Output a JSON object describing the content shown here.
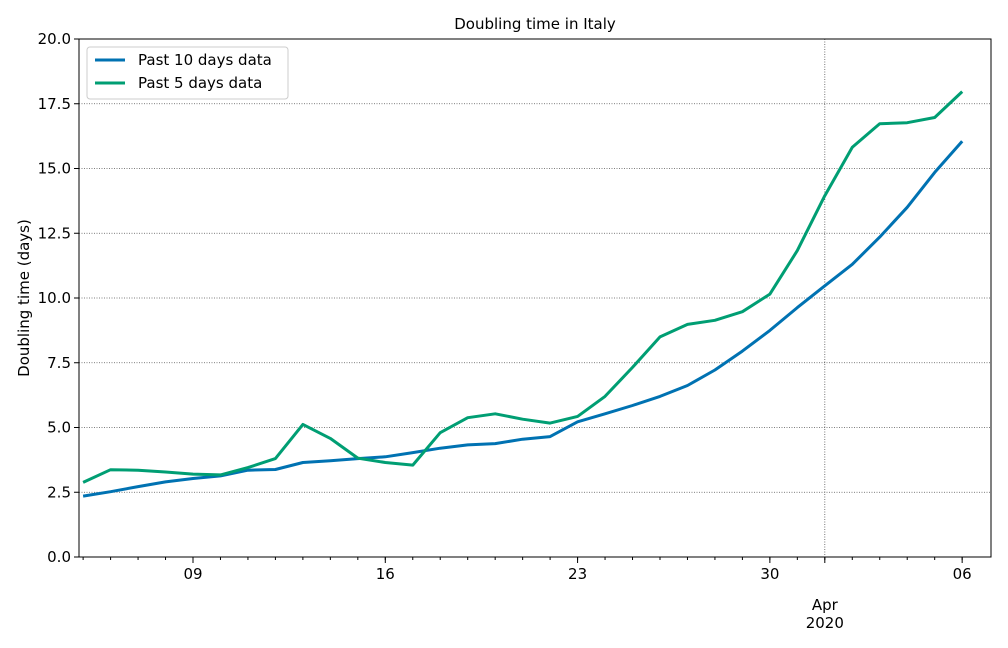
{
  "chart_data": {
    "type": "line",
    "title": "Doubling time in Italy",
    "xlabel": "",
    "ylabel": "Doubling time (days)",
    "ylim": [
      0,
      20
    ],
    "yticks": [
      "0.0",
      "2.5",
      "5.0",
      "7.5",
      "10.0",
      "12.5",
      "15.0",
      "17.5",
      "20.0"
    ],
    "x_range": [
      "2020-03-05",
      "2020-04-06"
    ],
    "x_tick_labels": [
      {
        "date": "2020-03-09",
        "label": "09"
      },
      {
        "date": "2020-03-16",
        "label": "16"
      },
      {
        "date": "2020-03-23",
        "label": "23"
      },
      {
        "date": "2020-03-30",
        "label": "30"
      },
      {
        "date": "2020-04-06",
        "label": "06"
      }
    ],
    "x_month_label": {
      "date": "2020-04-01",
      "label": "Apr",
      "year": "2020"
    },
    "grid": true,
    "legend_position": "top-left",
    "x": [
      "2020-03-05",
      "2020-03-06",
      "2020-03-07",
      "2020-03-08",
      "2020-03-09",
      "2020-03-10",
      "2020-03-11",
      "2020-03-12",
      "2020-03-13",
      "2020-03-14",
      "2020-03-15",
      "2020-03-16",
      "2020-03-17",
      "2020-03-18",
      "2020-03-19",
      "2020-03-20",
      "2020-03-21",
      "2020-03-22",
      "2020-03-23",
      "2020-03-24",
      "2020-03-25",
      "2020-03-26",
      "2020-03-27",
      "2020-03-28",
      "2020-03-29",
      "2020-03-30",
      "2020-03-31",
      "2020-04-01",
      "2020-04-02",
      "2020-04-03",
      "2020-04-04",
      "2020-04-05",
      "2020-04-06"
    ],
    "series": [
      {
        "name": "Past 10 days data",
        "color": "#0072b2",
        "values": [
          2.35,
          2.52,
          2.72,
          2.9,
          3.03,
          3.13,
          3.35,
          3.38,
          3.65,
          3.72,
          3.8,
          3.87,
          4.03,
          4.2,
          4.33,
          4.38,
          4.55,
          4.65,
          5.22,
          5.53,
          5.85,
          6.2,
          6.62,
          7.22,
          7.95,
          8.75,
          9.63,
          10.47,
          11.3,
          12.35,
          13.5,
          14.85,
          16.05
        ]
      },
      {
        "name": "Past 5 days data",
        "color": "#009e73",
        "values": [
          2.88,
          3.37,
          3.35,
          3.28,
          3.2,
          3.17,
          3.45,
          3.8,
          5.12,
          4.58,
          3.82,
          3.65,
          3.55,
          4.8,
          5.38,
          5.53,
          5.32,
          5.17,
          5.43,
          6.2,
          7.32,
          8.5,
          8.98,
          9.14,
          9.47,
          10.15,
          11.83,
          13.95,
          15.82,
          16.73,
          16.77,
          16.97,
          17.97
        ]
      }
    ]
  }
}
